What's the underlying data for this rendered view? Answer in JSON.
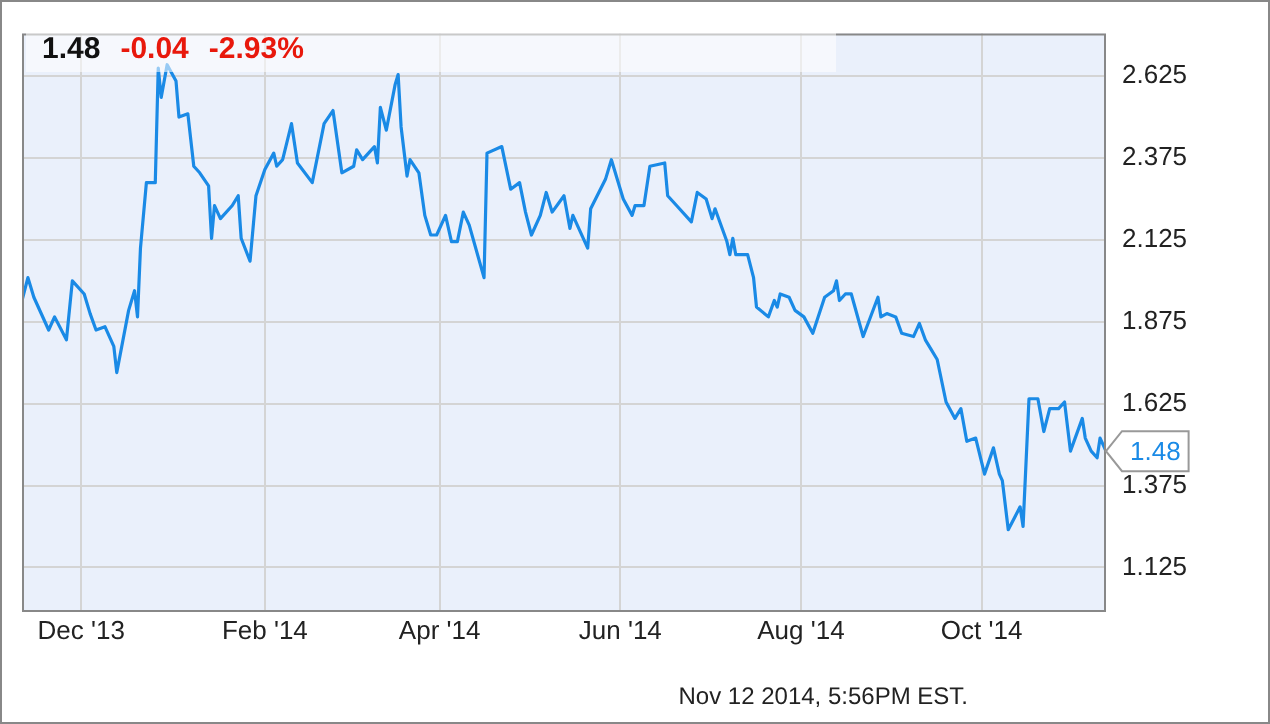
{
  "chart_data": {
    "type": "line",
    "title": "1.48",
    "subtitle": "-0.04  -2.93%",
    "annotations": [
      {
        "text": "1.48",
        "x": "2014-11-12",
        "y": 1.48
      },
      "Nov 12 2014, 5:56PM EST."
    ],
    "x": [
      "2013-11-11",
      "2013-11-13",
      "2013-11-15",
      "2013-11-20",
      "2013-11-22",
      "2013-11-26",
      "2013-11-28",
      "2013-12-02",
      "2013-12-04",
      "2013-12-06",
      "2013-12-09",
      "2013-12-12",
      "2013-12-13",
      "2013-12-17",
      "2013-12-19",
      "2013-12-20",
      "2013-12-21",
      "2013-12-23",
      "2013-12-26",
      "2013-12-27",
      "2013-12-28",
      "2013-12-30",
      "2014-01-02",
      "2014-01-03",
      "2014-01-06",
      "2014-01-08",
      "2014-01-10",
      "2014-01-13",
      "2014-01-14",
      "2014-01-15",
      "2014-01-17",
      "2014-01-21",
      "2014-01-23",
      "2014-01-24",
      "2014-01-27",
      "2014-01-29",
      "2014-02-01",
      "2014-02-04",
      "2014-02-05",
      "2014-02-07",
      "2014-02-10",
      "2014-02-12",
      "2014-02-17",
      "2014-02-21",
      "2014-02-24",
      "2014-02-27",
      "2014-03-03",
      "2014-03-04",
      "2014-03-06",
      "2014-03-10",
      "2014-03-11",
      "2014-03-12",
      "2014-03-14",
      "2014-03-17",
      "2014-03-18",
      "2014-03-19",
      "2014-03-21",
      "2014-03-22",
      "2014-03-25",
      "2014-03-27",
      "2014-03-29",
      "2014-03-31",
      "2014-04-03",
      "2014-04-05",
      "2014-04-07",
      "2014-04-09",
      "2014-04-11",
      "2014-04-16",
      "2014-04-17",
      "2014-04-22",
      "2014-04-25",
      "2014-04-28",
      "2014-04-30",
      "2014-05-02",
      "2014-05-05",
      "2014-05-07",
      "2014-05-09",
      "2014-05-13",
      "2014-05-15",
      "2014-05-16",
      "2014-05-21",
      "2014-05-22",
      "2014-05-27",
      "2014-05-29",
      "2014-06-02",
      "2014-06-05",
      "2014-06-06",
      "2014-06-09",
      "2014-06-11",
      "2014-06-16",
      "2014-06-17",
      "2014-06-20",
      "2014-06-25",
      "2014-06-27",
      "2014-06-30",
      "2014-07-02",
      "2014-07-03",
      "2014-07-07",
      "2014-07-08",
      "2014-07-09",
      "2014-07-10",
      "2014-07-14",
      "2014-07-16",
      "2014-07-17",
      "2014-07-21",
      "2014-07-23",
      "2014-07-24",
      "2014-07-25",
      "2014-07-28",
      "2014-07-30",
      "2014-08-02",
      "2014-08-05",
      "2014-08-09",
      "2014-08-12",
      "2014-08-13",
      "2014-08-14",
      "2014-08-16",
      "2014-08-18",
      "2014-08-22",
      "2014-08-27",
      "2014-08-28",
      "2014-08-30",
      "2014-09-02",
      "2014-09-04",
      "2014-09-08",
      "2014-09-10",
      "2014-09-12",
      "2014-09-14",
      "2014-09-16",
      "2014-09-19",
      "2014-09-22",
      "2014-09-24",
      "2014-09-26",
      "2014-09-29",
      "2014-10-02",
      "2014-10-05",
      "2014-10-07",
      "2014-10-08",
      "2014-10-10",
      "2014-10-14",
      "2014-10-15",
      "2014-10-17",
      "2014-10-20",
      "2014-10-22",
      "2014-10-24",
      "2014-10-27",
      "2014-10-29",
      "2014-10-31",
      "2014-11-04",
      "2014-11-05",
      "2014-11-07",
      "2014-11-09",
      "2014-11-10",
      "2014-11-12"
    ],
    "series": [
      {
        "color": "#1a8ae6",
        "values": [
          1.94,
          2.01,
          1.95,
          1.85,
          1.89,
          1.82,
          2.0,
          1.96,
          1.9,
          1.85,
          1.86,
          1.8,
          1.72,
          1.91,
          1.97,
          1.89,
          2.1,
          2.3,
          2.3,
          2.65,
          2.56,
          2.66,
          2.61,
          2.5,
          2.51,
          2.35,
          2.33,
          2.29,
          2.13,
          2.23,
          2.19,
          2.23,
          2.26,
          2.13,
          2.06,
          2.26,
          2.34,
          2.39,
          2.35,
          2.37,
          2.48,
          2.36,
          2.3,
          2.48,
          2.52,
          2.33,
          2.35,
          2.4,
          2.37,
          2.41,
          2.36,
          2.53,
          2.46,
          2.6,
          2.63,
          2.47,
          2.32,
          2.37,
          2.33,
          2.2,
          2.14,
          2.14,
          2.2,
          2.12,
          2.12,
          2.21,
          2.17,
          2.01,
          2.39,
          2.41,
          2.28,
          2.3,
          2.21,
          2.14,
          2.2,
          2.27,
          2.21,
          2.26,
          2.16,
          2.2,
          2.1,
          2.22,
          2.31,
          2.37,
          2.25,
          2.2,
          2.23,
          2.23,
          2.35,
          2.36,
          2.26,
          2.23,
          2.18,
          2.27,
          2.25,
          2.19,
          2.22,
          2.12,
          2.08,
          2.13,
          2.08,
          2.08,
          2.01,
          1.92,
          1.89,
          1.94,
          1.92,
          1.96,
          1.95,
          1.91,
          1.89,
          1.84,
          1.95,
          1.97,
          2.0,
          1.94,
          1.96,
          1.96,
          1.83,
          1.95,
          1.89,
          1.9,
          1.89,
          1.84,
          1.83,
          1.87,
          1.82,
          1.79,
          1.76,
          1.63,
          1.58,
          1.61,
          1.51,
          1.52,
          1.41,
          1.49,
          1.41,
          1.39,
          1.24,
          1.31,
          1.25,
          1.64,
          1.64,
          1.54,
          1.61,
          1.61,
          1.63,
          1.48,
          1.58,
          1.52,
          1.48,
          1.46,
          1.52,
          1.48
        ]
      }
    ],
    "xlim": [
      "2013-11-11",
      "2014-11-12"
    ],
    "xticks": [
      {
        "value": "2013-12-01",
        "label": "Dec '13"
      },
      {
        "value": "2014-02-01",
        "label": "Feb '14"
      },
      {
        "value": "2014-04-01",
        "label": "Apr '14"
      },
      {
        "value": "2014-06-01",
        "label": "Jun '14"
      },
      {
        "value": "2014-08-01",
        "label": "Aug '14"
      },
      {
        "value": "2014-10-01",
        "label": "Oct '14"
      }
    ],
    "ylim": [
      0.995,
      2.755
    ],
    "yticks": [
      1.125,
      1.375,
      1.625,
      1.875,
      2.125,
      2.375,
      2.625
    ],
    "grid": true,
    "legend": false,
    "marker": "none",
    "line_style": "solid"
  }
}
